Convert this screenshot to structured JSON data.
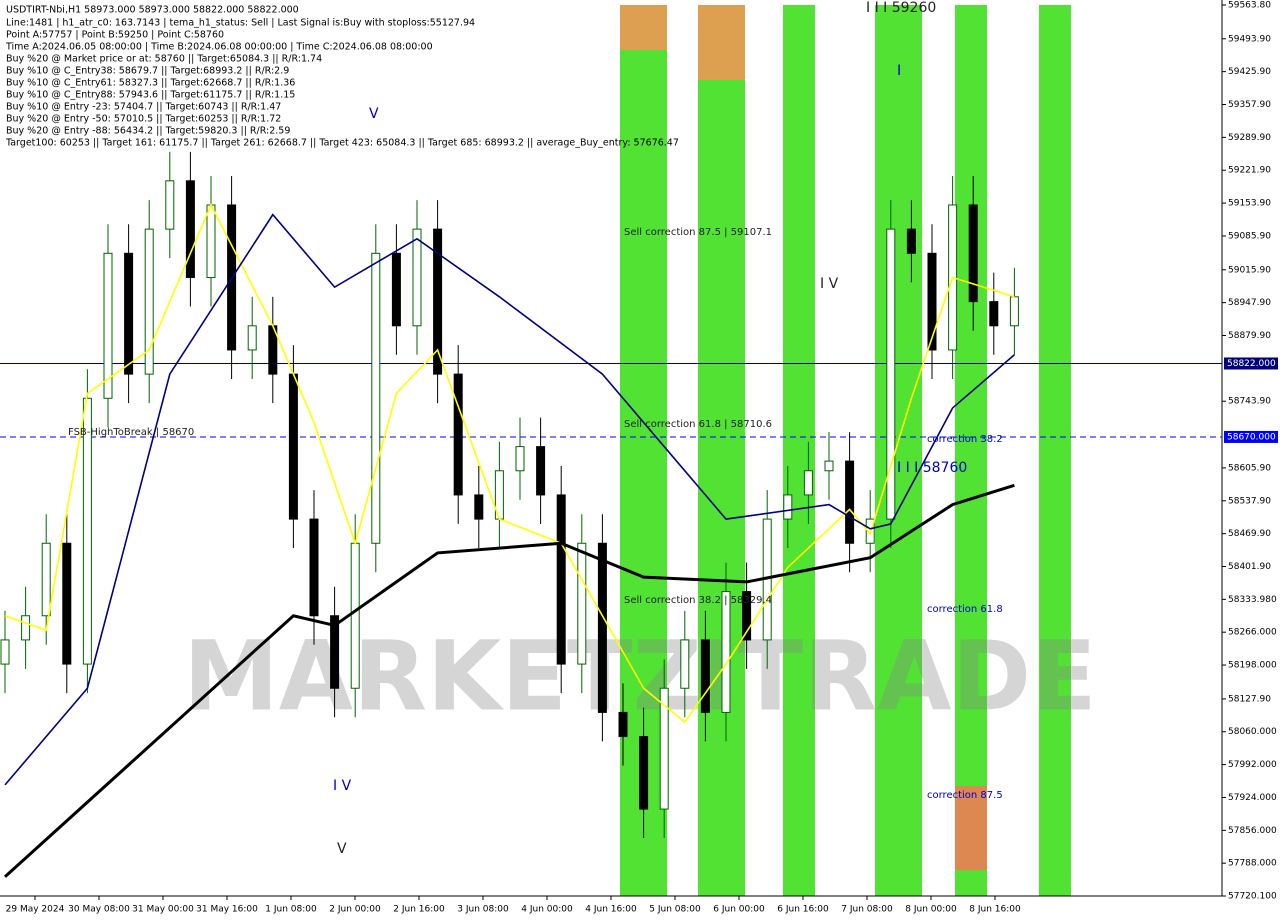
{
  "chart_data": {
    "type": "candlestick",
    "title": "USDTIRT-Nbi,H1  58973.000 58973.000 58822.000 58822.000",
    "info_lines": [
      "Line:1481 | h1_atr_c0: 163.7143 | tema_h1_status: Sell | Last Signal is:Buy with stoploss:55127.94",
      "Point A:57757 | Point B:59250 | Point C:58760",
      "Time A:2024.06.05 08:00:00 | Time B:2024.06.08 00:00:00 | Time C:2024.06.08 08:00:00",
      "Buy %20 @ Market price or at: 58760 || Target:65084.3 || R/R:1.74",
      "Buy %10 @ C_Entry38: 58679.7 || Target:68993.2 || R/R:2.9",
      "Buy %10 @ C_Entry61: 58327.3 || Target:62668.7 || R/R:1.36",
      "Buy %10 @ C_Entry88: 57943.6 || Target:61175.7 || R/R:1.15",
      "Buy %10 @ Entry -23: 57404.7 || Target:60743 || R/R:1.47",
      "Buy %20 @ Entry -50: 57010.5 || Target:60253 || R/R:1.72",
      "Buy %20 @ Entry -88: 56434.2 || Target:59820.3 || R/R:2.59",
      "Target100: 60253 || Target 161: 61175.7 || Target 261: 62668.7 || Target 423: 65084.3 || Target 685: 68993.2 || average_Buy_entry: 57676.47"
    ],
    "x_labels": [
      "29 May 2024",
      "30 May 08:00",
      "31 May 00:00",
      "31 May 16:00",
      "1 Jun 08:00",
      "2 Jun 00:00",
      "2 Jun 16:00",
      "3 Jun 08:00",
      "4 Jun 00:00",
      "4 Jun 16:00",
      "5 Jun 08:00",
      "6 Jun 00:00",
      "6 Jun 16:00",
      "7 Jun 08:00",
      "8 Jun 00:00",
      "8 Jun 16:00"
    ],
    "ylim": [
      57720.1,
      59563.8
    ],
    "yticks": [
      {
        "value": 59563.8,
        "label": "59563.80"
      },
      {
        "value": 59493.9,
        "label": "59493.90"
      },
      {
        "value": 59425.9,
        "label": "59425.90"
      },
      {
        "value": 59357.9,
        "label": "59357.90"
      },
      {
        "value": 59289.9,
        "label": "59289.90"
      },
      {
        "value": 59221.9,
        "label": "59221.90"
      },
      {
        "value": 59153.9,
        "label": "59153.90"
      },
      {
        "value": 59085.9,
        "label": "59085.90"
      },
      {
        "value": 59015.9,
        "label": "59015.90"
      },
      {
        "value": 58947.9,
        "label": "58947.90"
      },
      {
        "value": 58879.9,
        "label": "58879.90"
      },
      {
        "value": 58743.9,
        "label": "58743.90"
      },
      {
        "value": 58605.9,
        "label": "58605.90"
      },
      {
        "value": 58537.9,
        "label": "58537.90"
      },
      {
        "value": 58469.9,
        "label": "58469.90"
      },
      {
        "value": 58401.9,
        "label": "58401.90"
      },
      {
        "value": 58333.98,
        "label": "58333.980"
      },
      {
        "value": 58266,
        "label": "58266.000"
      },
      {
        "value": 58198,
        "label": "58198.000"
      },
      {
        "value": 58127.9,
        "label": "58127.90"
      },
      {
        "value": 58060,
        "label": "58060.000"
      },
      {
        "value": 57992,
        "label": "57992.000"
      },
      {
        "value": 57924,
        "label": "57924.000"
      },
      {
        "value": 57856,
        "label": "57856.000"
      },
      {
        "value": 57788,
        "label": "57788.000"
      },
      {
        "value": 57720.1,
        "label": "57720.100"
      }
    ],
    "price_lines": [
      {
        "value": 58822,
        "label": "58822.000",
        "color": "#000080"
      },
      {
        "value": 58670,
        "label": "58670.000",
        "color": "#0000ff"
      }
    ],
    "bull_color": "#006400",
    "bear_color": "#000000",
    "open": [
      58200,
      58250,
      58300,
      58450,
      58200,
      58750,
      59050,
      58800,
      59100,
      59200,
      59000,
      59150,
      58850,
      58900,
      58800,
      58500,
      58300,
      58150,
      58450,
      59050,
      58900,
      59100,
      58800,
      58550,
      58500,
      58600,
      58650,
      58550,
      58200,
      58450,
      58100,
      58050,
      57900,
      58150,
      58250,
      58100,
      58350,
      58250,
      58500,
      58550,
      58600,
      58620,
      58450,
      58500,
      59100,
      59050,
      58850,
      59150,
      58950,
      58900
    ],
    "high": [
      58310,
      58360,
      58510,
      58510,
      58810,
      59110,
      59110,
      59160,
      59260,
      59260,
      59210,
      59210,
      58960,
      58960,
      58860,
      58560,
      58360,
      58510,
      59110,
      59110,
      59160,
      59160,
      58860,
      58610,
      58660,
      58710,
      58710,
      58610,
      58510,
      58510,
      58160,
      58110,
      58210,
      58310,
      58310,
      58410,
      58410,
      58560,
      58610,
      58660,
      58680,
      58680,
      58560,
      59160,
      59160,
      59110,
      59210,
      59210,
      59010,
      59020
    ],
    "low": [
      58140,
      58190,
      58240,
      58140,
      58140,
      58690,
      58740,
      58740,
      59040,
      58940,
      58940,
      58790,
      58790,
      58740,
      58440,
      58240,
      58090,
      58090,
      58390,
      58840,
      58840,
      58740,
      58490,
      58440,
      58440,
      58540,
      58490,
      58140,
      58140,
      58040,
      57990,
      57840,
      57840,
      58090,
      58040,
      58040,
      58190,
      58190,
      58440,
      58490,
      58540,
      58390,
      58390,
      58440,
      58990,
      58790,
      58790,
      58890,
      58840,
      58840
    ],
    "close": [
      58250,
      58300,
      58450,
      58200,
      58750,
      59050,
      58800,
      59100,
      59200,
      59000,
      59150,
      58850,
      58900,
      58800,
      58500,
      58300,
      58150,
      58450,
      59050,
      58900,
      59100,
      58800,
      58550,
      58500,
      58600,
      58650,
      58550,
      58200,
      58450,
      58100,
      58050,
      57900,
      58150,
      58250,
      58100,
      58350,
      58250,
      58500,
      58550,
      58600,
      58620,
      58450,
      58500,
      59100,
      59050,
      58850,
      59150,
      58950,
      58900,
      58960
    ],
    "moving_averages": [
      {
        "color": "#ffff00",
        "x": [
          0,
          2,
          4,
          7,
          10,
          13,
          15,
          17,
          19,
          21,
          24,
          27,
          31,
          33,
          35,
          38,
          41,
          42,
          44,
          46,
          49
        ],
        "values": [
          58300,
          58270,
          58760,
          58850,
          59150,
          58900,
          58700,
          58450,
          58760,
          58850,
          58500,
          58450,
          58150,
          58080,
          58200,
          58400,
          58520,
          58470,
          58750,
          59000,
          58960
        ]
      },
      {
        "color": "#000080",
        "x": [
          0,
          4,
          8,
          13,
          16,
          20,
          24,
          29,
          31,
          35,
          40,
          42,
          43,
          46,
          49
        ],
        "values": [
          57950,
          58150,
          58800,
          59130,
          58980,
          59080,
          58960,
          58800,
          58700,
          58500,
          58530,
          58480,
          58490,
          58730,
          58840
        ]
      },
      {
        "color": "#000000",
        "x": [
          0,
          14,
          16,
          21,
          27,
          31,
          36,
          42,
          46,
          49
        ],
        "values": [
          57760,
          58300,
          58280,
          58430,
          58450,
          58380,
          58370,
          58420,
          58530,
          58570
        ]
      }
    ],
    "annotations": [
      "Sell correction 87.5 | 59107.1",
      "Sell correction 61.8 | 58710.6",
      "Sell correction 38.2 | 58329.4",
      "correction 38.2",
      "correction 61.8",
      "correction 87.5",
      "I I I 59260",
      "I I I 58760",
      "FSB-HighToBreak | 58670",
      "I V",
      "I V",
      "V",
      "V",
      "I"
    ],
    "watermark": "MARKETZITRADE"
  }
}
